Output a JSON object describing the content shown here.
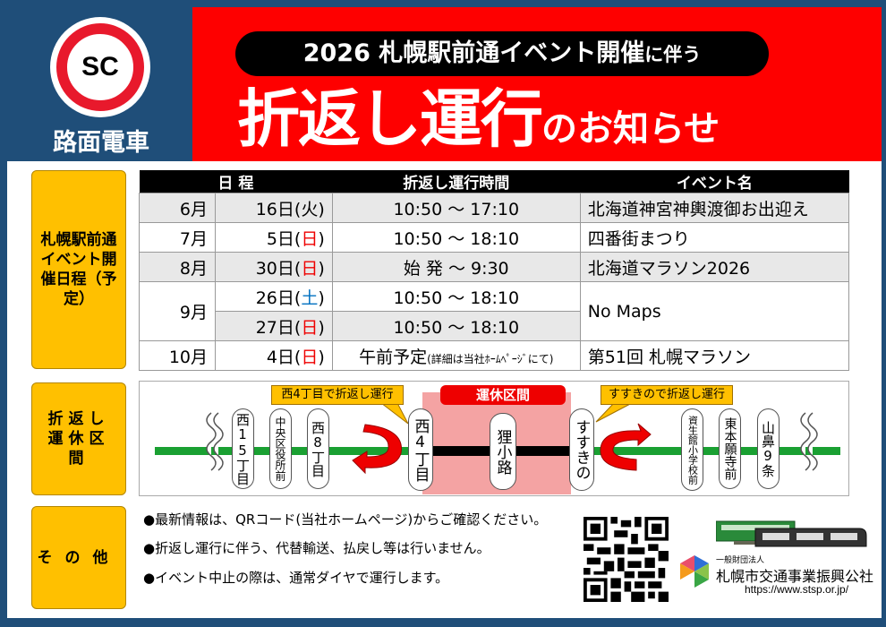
{
  "header": {
    "logo_text": "SC",
    "logo_name": "路面電車",
    "subtitle_main": "2026 札幌駅前通イベント開催",
    "subtitle_suffix": "に伴う",
    "title_main": "折返し運行",
    "title_suffix": "のお知らせ"
  },
  "colors": {
    "navy": "#1f4e79",
    "red": "#fe0000",
    "orange": "#ffc000",
    "green": "#1aa032",
    "pink": "#f4a3a3"
  },
  "labels": {
    "schedule": "札幌駅前通イベント開催日程（予定）",
    "suspended": "折返し運休区間",
    "other": "その他"
  },
  "table": {
    "headers": [
      "日 程",
      "折返し運行時間",
      "イベント名"
    ],
    "rows": [
      {
        "month": "6月",
        "day": "16日",
        "dow": "火",
        "time": "10:50 ～ 17:10",
        "event": "北海道神宮神輿渡御お出迎え"
      },
      {
        "month": "7月",
        "day": "5日",
        "dow": "日",
        "time": "10:50 ～ 18:10",
        "event": "四番街まつり"
      },
      {
        "month": "8月",
        "day": "30日",
        "dow": "日",
        "time": "始 発 ～ 9:30",
        "event": "北海道マラソン2026"
      },
      {
        "month": "9月",
        "day": "26日",
        "dow": "土",
        "time": "10:50 ～ 18:10",
        "event": "No Maps"
      },
      {
        "month": "",
        "day": "27日",
        "dow": "日",
        "time": "10:50 ～ 18:10",
        "event": ""
      },
      {
        "month": "10月",
        "day": "4日",
        "dow": "日",
        "time": "午前予定",
        "time_note": "(詳細は当社ﾎｰﾑﾍﾟｰｼﾞにて)",
        "event": "第51回 札幌マラソン"
      }
    ]
  },
  "diagram": {
    "suspended_label": "運休区間",
    "callout_west": "西4丁目で折返し運行",
    "callout_east": "すすきので折返し運行",
    "stations": [
      "西15丁目",
      "中央区役所前",
      "西8丁目",
      "西4丁目",
      "狸小路",
      "すすきの",
      "資生館小学校前",
      "東本願寺前",
      "山鼻9条"
    ]
  },
  "notes": [
    "●最新情報は、QRコード(当社ホームページ)からご確認ください。",
    "●折返し運行に伴う、代替輸送、払戻し等は行いません。",
    "●イベント中止の際は、通常ダイヤで運行します。"
  ],
  "footer": {
    "org_prefix": "一般財団法人",
    "org_name": "札幌市交通事業振興公社",
    "url": "https://www.stsp.or.jp/"
  }
}
